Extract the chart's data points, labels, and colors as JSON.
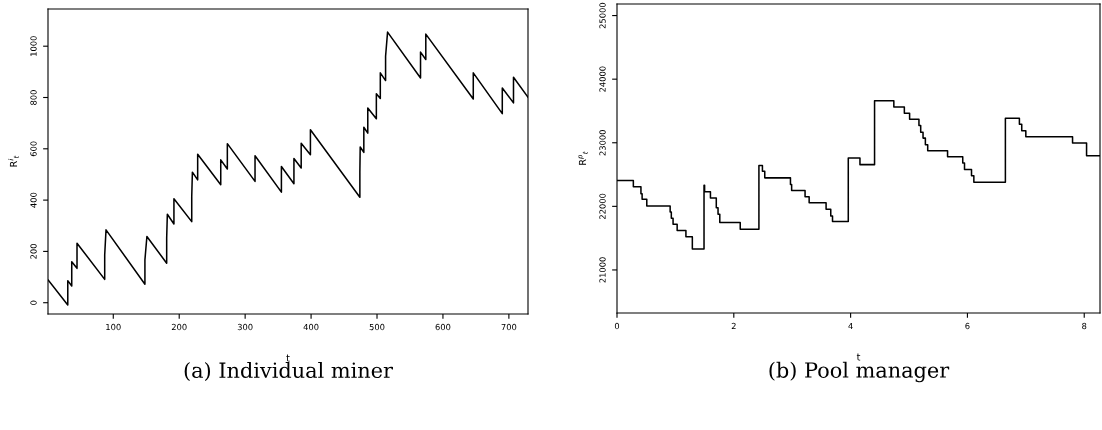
{
  "chart_data": [
    {
      "type": "line",
      "xlabel": "t",
      "ylabel": "R$^{i}$$_{t}$",
      "xlim": [
        1,
        729
      ],
      "ylim": [
        -44,
        1145
      ],
      "xticks": [
        100,
        200,
        300,
        400,
        500,
        600,
        700
      ],
      "yticks": [
        0,
        200,
        400,
        600,
        800,
        1000
      ],
      "annotations": [
        "(a) Individual miner"
      ],
      "series": [
        {
          "color": "#000000",
          "x": [
            1.5,
            31,
            31,
            37,
            37,
            45,
            45,
            87,
            87,
            89,
            148,
            148,
            151,
            181,
            181,
            182,
            192,
            192,
            219,
            219,
            220,
            228,
            228,
            263,
            263,
            273,
            273,
            315,
            315,
            355,
            355,
            374,
            374,
            385,
            385,
            399,
            399,
            474,
            474,
            474.5,
            480,
            480,
            486,
            486,
            499,
            499,
            505,
            505,
            513,
            513,
            516,
            566,
            566,
            574,
            574,
            646,
            646,
            690,
            690,
            707,
            707,
            729
          ],
          "values": [
            88,
            -9,
            86,
            65,
            160,
            134,
            232,
            91,
            186,
            284,
            72,
            167,
            258,
            154,
            251,
            345,
            307,
            405,
            316,
            414,
            509,
            479,
            579,
            460,
            557,
            521,
            620,
            473,
            573,
            431,
            531,
            464,
            562,
            525,
            622,
            577,
            674,
            411,
            509,
            607,
            586,
            684,
            661,
            759,
            717,
            815,
            796,
            896,
            866,
            961,
            1055,
            876,
            977,
            948,
            1047,
            794,
            896,
            737,
            837,
            779,
            879,
            801
          ]
        }
      ]
    },
    {
      "type": "step",
      "xlabel": "t",
      "ylabel": "R$^{p}$$_{t}$",
      "xlim": [
        0,
        8.27
      ],
      "ylim": [
        20323,
        25182
      ],
      "xticks": [
        0,
        2,
        4,
        6,
        8
      ],
      "yticks": [
        21000,
        22000,
        23000,
        24000,
        25000
      ],
      "annotations": [
        "(b) Pool manager"
      ],
      "series": [
        {
          "color": "#000000",
          "x": [
            0,
            0.28,
            0.41,
            0.43,
            0.51,
            0.91,
            0.93,
            0.96,
            1.03,
            1.18,
            1.29,
            1.49,
            1.5,
            1.6,
            1.7,
            1.73,
            1.76,
            2.11,
            2.43,
            2.49,
            2.53,
            2.97,
            2.99,
            3.22,
            3.29,
            3.58,
            3.66,
            3.69,
            3.96,
            4.16,
            4.41,
            4.74,
            4.92,
            5.01,
            5.17,
            5.2,
            5.24,
            5.28,
            5.32,
            5.66,
            5.92,
            5.95,
            6.07,
            6.11,
            6.65,
            6.89,
            6.93,
            7.0,
            7.8,
            8.04,
            8.27
          ],
          "values": [
            22406,
            22307,
            22198,
            22110,
            22005,
            21912,
            21813,
            21719,
            21620,
            21521,
            21328,
            22333,
            22229,
            22130,
            21979,
            21875,
            21745,
            21641,
            22641,
            22552,
            22448,
            22344,
            22250,
            22151,
            22057,
            21953,
            21849,
            21761,
            22761,
            22656,
            23662,
            23563,
            23464,
            23370,
            23271,
            23167,
            23073,
            22969,
            22875,
            22781,
            22680,
            22580,
            22480,
            22380,
            23386,
            23292,
            23188,
            23094,
            22995,
            22797,
            22797
          ]
        }
      ]
    }
  ]
}
